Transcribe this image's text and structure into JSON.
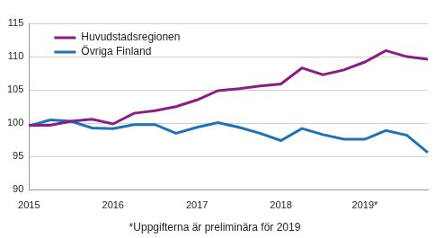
{
  "chart_data": {
    "type": "line",
    "caption": "*Uppgifterna är preliminära för 2019",
    "categories": [
      "2015",
      null,
      null,
      null,
      "2016",
      null,
      null,
      null,
      "2017",
      null,
      null,
      null,
      "2018",
      null,
      null,
      null,
      "2019*",
      null,
      null,
      null
    ],
    "series": [
      {
        "name": "Huvudstadsregionen",
        "color": "#8c1d87",
        "values": [
          99.7,
          99.7,
          100.3,
          100.6,
          99.9,
          101.5,
          101.9,
          102.5,
          103.5,
          104.9,
          105.2,
          105.6,
          105.9,
          108.3,
          107.3,
          108.0,
          109.2,
          110.9,
          110.0,
          109.6
        ]
      },
      {
        "name": "Övriga Finland",
        "color": "#1f72b5",
        "values": [
          99.6,
          100.5,
          100.3,
          99.3,
          99.2,
          99.8,
          99.8,
          98.5,
          99.4,
          100.1,
          99.4,
          98.5,
          97.4,
          99.2,
          98.3,
          97.6,
          97.6,
          98.9,
          98.2,
          95.6
        ]
      }
    ],
    "ylim": [
      90,
      115
    ],
    "yticks": [
      90,
      95,
      100,
      105,
      110,
      115
    ],
    "grid": true,
    "legend": "upper left"
  }
}
